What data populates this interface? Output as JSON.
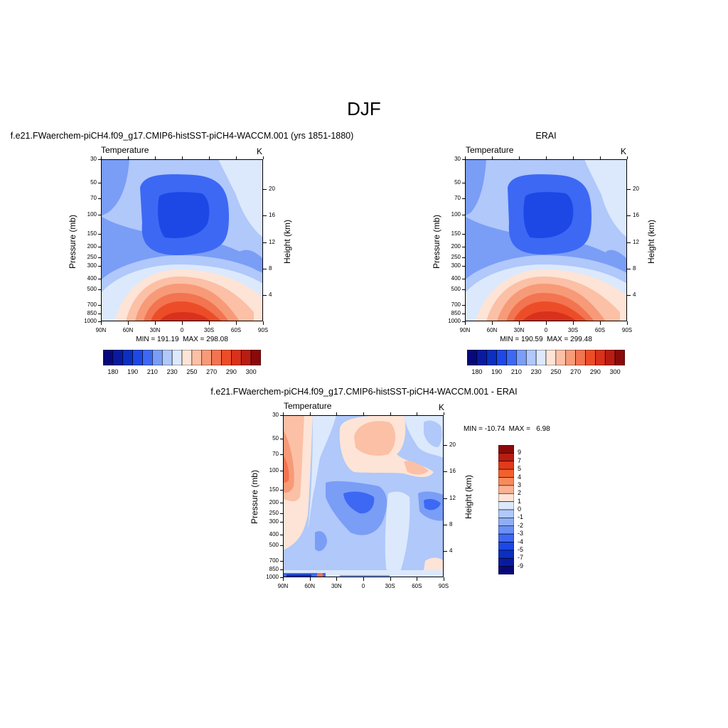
{
  "main_title": "DJF",
  "colors": {
    "temperature_bar": [
      "#08087a",
      "#0a1aa0",
      "#0b2fc0",
      "#1d48e6",
      "#3d68f4",
      "#7a9df6",
      "#b0c8fa",
      "#dce9fc",
      "#fde4d6",
      "#fbc0a6",
      "#f79a78",
      "#f27450",
      "#ec4d28",
      "#d9311b",
      "#b81d12",
      "#8a0a0a"
    ],
    "difference_bar": [
      "#8a0a0a",
      "#b81d12",
      "#e23a1a",
      "#f4602c",
      "#f78a5c",
      "#f9b292",
      "#fde4d6",
      "#dce9fc",
      "#b0c8fa",
      "#90aef8",
      "#6a8ff5",
      "#3d68f4",
      "#1d48e6",
      "#0b2fc0",
      "#0a1aa0",
      "#08087a"
    ]
  },
  "chart_data": [
    {
      "type": "heatmap",
      "title": "f.e21.FWaerchem-piCH4.f09_g17.CMIP6-histSST-piCH4-WACCM.001 (yrs 1851-1880)",
      "variable_label": "Temperature",
      "units": "K",
      "ylabel": "Pressure (mb)",
      "ylabel_right": "Height (km)",
      "x_ticks": [
        "90N",
        "60N",
        "30N",
        "0",
        "30S",
        "60S",
        "90S"
      ],
      "y_ticks": [
        30,
        50,
        70,
        100,
        150,
        200,
        250,
        300,
        400,
        500,
        700,
        850,
        1000
      ],
      "height_ticks": [
        4,
        8,
        12,
        16,
        20
      ],
      "min_label": "MIN = 191.19",
      "max_label": "MAX = 298.08",
      "colorbar_ticks": [
        "180",
        "190",
        "210",
        "230",
        "250",
        "270",
        "290",
        "300"
      ]
    },
    {
      "type": "heatmap",
      "title": "ERAI",
      "variable_label": "Temperature",
      "units": "K",
      "ylabel": "Pressure (mb)",
      "ylabel_right": "Height (km)",
      "x_ticks": [
        "90N",
        "60N",
        "30N",
        "0",
        "30S",
        "60S",
        "90S"
      ],
      "y_ticks": [
        30,
        50,
        70,
        100,
        150,
        200,
        250,
        300,
        400,
        500,
        700,
        850,
        1000
      ],
      "height_ticks": [
        4,
        8,
        12,
        16,
        20
      ],
      "min_label": "MIN = 190.59",
      "max_label": "MAX = 299.48",
      "colorbar_ticks": [
        "180",
        "190",
        "210",
        "230",
        "250",
        "270",
        "290",
        "300"
      ]
    },
    {
      "type": "heatmap",
      "title": "f.e21.FWaerchem-piCH4.f09_g17.CMIP6-histSST-piCH4-WACCM.001 - ERAI",
      "variable_label": "Temperature",
      "units": "K",
      "ylabel": "Pressure (mb)",
      "ylabel_right": "Height (km)",
      "x_ticks": [
        "90N",
        "60N",
        "30N",
        "0",
        "30S",
        "60S",
        "90S"
      ],
      "y_ticks": [
        30,
        50,
        70,
        100,
        150,
        200,
        250,
        300,
        400,
        500,
        700,
        850,
        1000
      ],
      "height_ticks": [
        4,
        8,
        12,
        16,
        20
      ],
      "min_label": "MIN = -10.74",
      "max_label": "MAX =   6.98",
      "colorbar_ticks": [
        "9",
        "7",
        "5",
        "4",
        "3",
        "2",
        "1",
        "0",
        "-1",
        "-2",
        "-3",
        "-4",
        "-5",
        "-7",
        "-9"
      ]
    }
  ]
}
